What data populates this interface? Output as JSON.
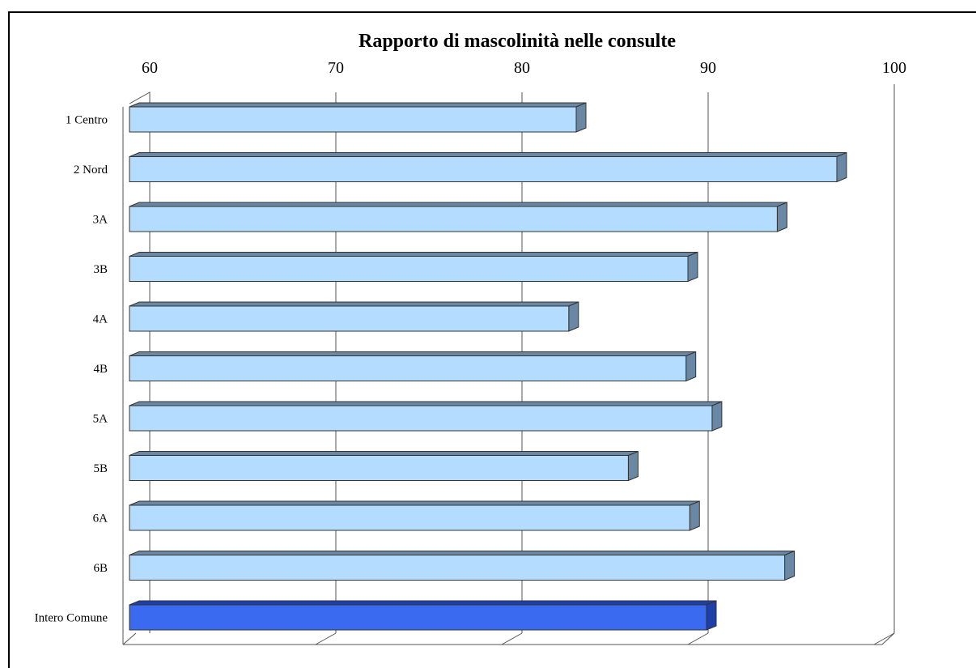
{
  "chart_data": {
    "type": "bar",
    "orientation": "horizontal",
    "title": "Rapporto di mascolinità nelle consulte",
    "xlabel": "",
    "ylabel": "",
    "xlim": [
      60,
      100
    ],
    "ticks": [
      "60",
      "70",
      "80",
      "90",
      "100"
    ],
    "grid": true,
    "categories": [
      "1 Centro",
      "2 Nord",
      "3A",
      "3B",
      "4A",
      "4B",
      "5A",
      "5B",
      "6A",
      "6B",
      "Intero Comune"
    ],
    "values": [
      84.0,
      98.0,
      94.8,
      90.0,
      83.6,
      89.9,
      91.3,
      86.8,
      90.1,
      95.2,
      91.0
    ],
    "highlight": "Intero Comune",
    "colors": {
      "bar_front": "#b3dcff",
      "bar_top": "#6a87a3",
      "bar_side": "#6a87a3",
      "highlight_front": "#3a6af0",
      "highlight_top": "#1e3fa8",
      "highlight_side": "#1e3fa8",
      "grid": "#555555"
    }
  }
}
